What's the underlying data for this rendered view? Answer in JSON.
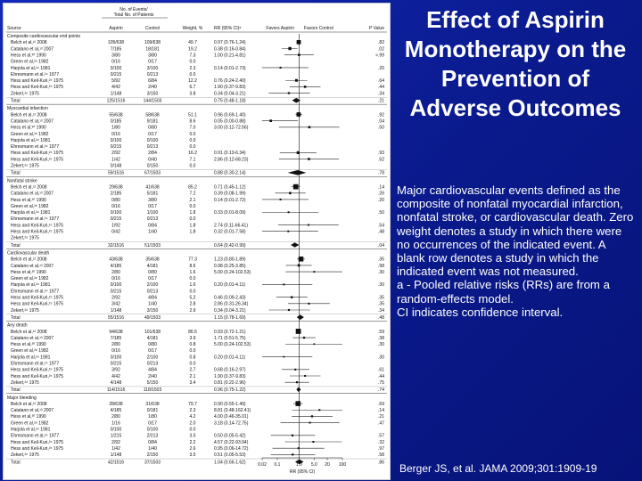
{
  "slide": {
    "title_lines": [
      "Effect of Aspirin",
      "Monotherapy on the",
      "Prevention of",
      "Adverse Outcomes"
    ],
    "notes": [
      "Major cardiovascular events defined as the composite of nonfatal myocardial infarction, nonfatal stroke, or cardiovascular death. Zero weight denotes a study in which there were no occurrences of the indicated event. A blank row denotes a study in which the indicated event was not measured.",
      "a - Pooled relative risks (RRs) are from a random-effects model.",
      "CI indicates confidence interval."
    ],
    "citation": "Berger JS, et al. JAMA 2009;301:1909-19"
  },
  "figure": {
    "header": {
      "events_line1": "No. of Events/",
      "events_line2": "Total No. of Patients",
      "source": "Source",
      "aspirin": "Aspirin",
      "control": "Control",
      "weight": "Weight, %",
      "rr": "RR (95% CI)ᵃ",
      "favors_aspirin": "Favors Aspirin",
      "favors_control": "Favors Control",
      "pvalue": "P Value"
    },
    "axis": {
      "label": "RR (95% CI)",
      "ticks": [
        "0.02",
        "0.1",
        "1.0",
        "5.0",
        "20",
        "100"
      ],
      "tick_values": [
        0.02,
        0.1,
        1,
        5,
        20,
        100
      ],
      "scale": "log"
    }
  },
  "chart_data": {
    "type": "forest",
    "x_scale": "log",
    "xlim": [
      0.02,
      100
    ],
    "reference_line": 1,
    "groups": [
      {
        "name": "Composite cardiovascular end points",
        "studies": [
          {
            "source": "Belch et al,¹² 2008",
            "aspirin": "105/638",
            "control": "109/638",
            "weight": "49.7",
            "rr_text": "0.97 (0.76-1.24)",
            "rr": 0.97,
            "lo": 0.76,
            "hi": 1.24,
            "p": ".82"
          },
          {
            "source": "Catalano et al,¹³ 2007",
            "aspirin": "7/185",
            "control": "18/181",
            "weight": "19.2",
            "rr_text": "0.38 (0.16-0.84)",
            "rr": 0.38,
            "lo": 0.16,
            "hi": 0.84,
            "p": ".02"
          },
          {
            "source": "Hess et al,³⁰ 1990",
            "aspirin": "3/80",
            "control": "3/80",
            "weight": "7.3",
            "rr_text": "1.00 (0.21-4.81)",
            "rr": 1.0,
            "lo": 0.21,
            "hi": 4.81,
            "p": ">.99"
          },
          {
            "source": "Green et al,²⁸ 1982",
            "aspirin": "0/16",
            "control": "0/17",
            "weight": "0.0",
            "rr_text": "",
            "rr": null,
            "lo": null,
            "hi": null,
            "p": ""
          },
          {
            "source": "Harjola et al,²⁹ 1981",
            "aspirin": "0/100",
            "control": "3/100",
            "weight": "2.3",
            "rr_text": "0.14 (0.01-2.73)",
            "rr": 0.14,
            "lo": 0.01,
            "hi": 2.73,
            "p": ".20"
          },
          {
            "source": "Ehresmann et al,²⁴ 1977",
            "aspirin": "0/215",
            "control": "0/213",
            "weight": "0.0",
            "rr_text": "",
            "rr": null,
            "lo": null,
            "hi": null,
            "p": ""
          },
          {
            "source": "Hess and Keil-Kuri,²⁵ 1975",
            "aspirin": "5/92",
            "control": "6/84",
            "weight": "12.2",
            "rr_text": "0.76 (0.24-2.40)",
            "rr": 0.76,
            "lo": 0.24,
            "hi": 2.4,
            "p": ".64"
          },
          {
            "source": "Hess and Keil-Kuri,²⁵ 1975",
            "aspirin": "4/42",
            "control": "2/40",
            "weight": "6.7",
            "rr_text": "1.90 (0.37-9.83)",
            "rr": 1.9,
            "lo": 0.37,
            "hi": 9.83,
            "p": ".44"
          },
          {
            "source": "Zekert,²⁶ 1975",
            "aspirin": "1/148",
            "control": "3/150",
            "weight": "3.8",
            "rr_text": "0.34 (0.04-3.21)",
            "rr": 0.34,
            "lo": 0.04,
            "hi": 3.21,
            "p": ".34"
          }
        ],
        "total": {
          "aspirin": "125/1516",
          "control": "144/1503",
          "rr_text": "0.75 (0.48-1.18)",
          "rr": 0.75,
          "lo": 0.48,
          "hi": 1.18,
          "p": ".21"
        }
      },
      {
        "name": "Myocardial infarction",
        "studies": [
          {
            "source": "Belch et al,¹² 2008",
            "aspirin": "55/638",
            "control": "58/638",
            "weight": "51.1",
            "rr_text": "0.96 (0.69-1.40)",
            "rr": 0.96,
            "lo": 0.69,
            "hi": 1.4,
            "p": ".92"
          },
          {
            "source": "Catalano et al,¹³ 2007",
            "aspirin": "0/185",
            "control": "9/181",
            "weight": "8.6",
            "rr_text": "0.05 (0.00-0.88)",
            "rr": 0.05,
            "lo": 0.0,
            "hi": 0.88,
            "p": ".04"
          },
          {
            "source": "Hess et al,³⁰ 1990",
            "aspirin": "1/80",
            "control": "0/80",
            "weight": "7.0",
            "rr_text": "3.00 (0.12-72.56)",
            "rr": 3.0,
            "lo": 0.12,
            "hi": 72.56,
            "p": ".50"
          },
          {
            "source": "Green et al,²⁸ 1982",
            "aspirin": "0/16",
            "control": "0/17",
            "weight": "0.0",
            "rr_text": "",
            "rr": null,
            "lo": null,
            "hi": null,
            "p": ""
          },
          {
            "source": "Harjola et al,²⁹ 1981",
            "aspirin": "0/100",
            "control": "0/100",
            "weight": "0.0",
            "rr_text": "",
            "rr": null,
            "lo": null,
            "hi": null,
            "p": ""
          },
          {
            "source": "Ehresmann et al,²⁴ 1977",
            "aspirin": "0/215",
            "control": "0/213",
            "weight": "0.0",
            "rr_text": "",
            "rr": null,
            "lo": null,
            "hi": null,
            "p": ""
          },
          {
            "source": "Hess and Keil-Kuri,²⁵ 1975",
            "aspirin": "2/92",
            "control": "2/84",
            "weight": "16.2",
            "rr_text": "0.91 (0.13-6.34)",
            "rr": 0.91,
            "lo": 0.13,
            "hi": 6.34,
            "p": ".93"
          },
          {
            "source": "Hess and Keil-Kuri,²⁵ 1975",
            "aspirin": "1/42",
            "control": "0/40",
            "weight": "7.1",
            "rr_text": "2.86 (0.12-68.23)",
            "rr": 2.86,
            "lo": 0.12,
            "hi": 68.23,
            "p": ".52"
          },
          {
            "source": "Zekert,²⁶ 1975",
            "aspirin": "0/148",
            "control": "0/150",
            "weight": "0.0",
            "rr_text": "",
            "rr": null,
            "lo": null,
            "hi": null,
            "p": ""
          }
        ],
        "total": {
          "aspirin": "59/1516",
          "control": "67/1503",
          "rr_text": "0.88 (0.30-2.14)",
          "rr": 0.88,
          "lo": 0.3,
          "hi": 2.14,
          "p": ".78"
        }
      },
      {
        "name": "Nonfatal stroke",
        "studies": [
          {
            "source": "Belch et al,¹² 2008",
            "aspirin": "29/638",
            "control": "41/638",
            "weight": "85.2",
            "rr_text": "0.71 (0.45-1.12)",
            "rr": 0.71,
            "lo": 0.45,
            "hi": 1.12,
            "p": ".14"
          },
          {
            "source": "Catalano et al,¹³ 2007",
            "aspirin": "2/185",
            "control": "5/181",
            "weight": "7.2",
            "rr_text": "0.39 (0.08-1.99)",
            "rr": 0.39,
            "lo": 0.08,
            "hi": 1.99,
            "p": ".26"
          },
          {
            "source": "Hess et al,³⁰ 1990",
            "aspirin": "0/80",
            "control": "3/80",
            "weight": "2.1",
            "rr_text": "0.14 (0.01-2.72)",
            "rr": 0.14,
            "lo": 0.01,
            "hi": 2.72,
            "p": ".20"
          },
          {
            "source": "Green et al,²⁸ 1982",
            "aspirin": "0/16",
            "control": "0/17",
            "weight": "0.0",
            "rr_text": "",
            "rr": null,
            "lo": null,
            "hi": null,
            "p": ""
          },
          {
            "source": "Harjola et al,²⁹ 1981",
            "aspirin": "0/100",
            "control": "1/100",
            "weight": "1.8",
            "rr_text": "0.33 (0.01-8.09)",
            "rr": 0.33,
            "lo": 0.01,
            "hi": 8.09,
            "p": ".50"
          },
          {
            "source": "Ehresmann et al,²⁴ 1977",
            "aspirin": "0/215",
            "control": "0/213",
            "weight": "0.0",
            "rr_text": "",
            "rr": null,
            "lo": null,
            "hi": null,
            "p": ""
          },
          {
            "source": "Hess and Keil-Kuri,²⁵ 1975",
            "aspirin": "1/92",
            "control": "0/84",
            "weight": "1.8",
            "rr_text": "2.74 (0.11-66.41)",
            "rr": 2.74,
            "lo": 0.11,
            "hi": 66.41,
            "p": ".54"
          },
          {
            "source": "Hess and Keil-Kuri,²⁵ 1975",
            "aspirin": "0/42",
            "control": "1/40",
            "weight": "1.8",
            "rr_text": "0.32 (0.01-7.58)",
            "rr": 0.32,
            "lo": 0.01,
            "hi": 7.58,
            "p": ".48"
          },
          {
            "source": "Zekert,²⁶ 1975",
            "aspirin": "",
            "control": "",
            "weight": "",
            "rr_text": "",
            "rr": null,
            "lo": null,
            "hi": null,
            "p": ""
          }
        ],
        "total": {
          "aspirin": "32/1516",
          "control": "51/1503",
          "rr_text": "0.64 (0.42-0.99)",
          "rr": 0.64,
          "lo": 0.42,
          "hi": 0.99,
          "p": ".04"
        }
      },
      {
        "name": "Cardiovascular death",
        "studies": [
          {
            "source": "Belch et al,¹² 2008",
            "aspirin": "43/638",
            "control": "35/638",
            "weight": "77.3",
            "rr_text": "1.23 (0.80-1.89)",
            "rr": 1.23,
            "lo": 0.8,
            "hi": 1.89,
            "p": ".35"
          },
          {
            "source": "Catalano et al,¹³ 2007",
            "aspirin": "4/185",
            "control": "4/181",
            "weight": "8.6",
            "rr_text": "0.98 (0.25-3.85)",
            "rr": 0.98,
            "lo": 0.25,
            "hi": 3.85,
            "p": ".98"
          },
          {
            "source": "Hess et al,³⁰ 1990",
            "aspirin": "2/80",
            "control": "0/80",
            "weight": "1.6",
            "rr_text": "5.00 (0.24-102.53)",
            "rr": 5.0,
            "lo": 0.24,
            "hi": 102.53,
            "p": ".30"
          },
          {
            "source": "Green et al,²⁸ 1982",
            "aspirin": "0/16",
            "control": "0/17",
            "weight": "0.0",
            "rr_text": "",
            "rr": null,
            "lo": null,
            "hi": null,
            "p": ""
          },
          {
            "source": "Harjola et al,²⁹ 1981",
            "aspirin": "0/100",
            "control": "2/100",
            "weight": "1.6",
            "rr_text": "0.20 (0.01-4.11)",
            "rr": 0.2,
            "lo": 0.01,
            "hi": 4.11,
            "p": ".30"
          },
          {
            "source": "Ehresmann et al,²⁴ 1977",
            "aspirin": "0/215",
            "control": "0/213",
            "weight": "0.0",
            "rr_text": "",
            "rr": null,
            "lo": null,
            "hi": null,
            "p": ""
          },
          {
            "source": "Hess and Keil-Kuri,²⁵ 1975",
            "aspirin": "2/92",
            "control": "4/84",
            "weight": "5.2",
            "rr_text": "0.46 (0.09-2.43)",
            "rr": 0.46,
            "lo": 0.09,
            "hi": 2.43,
            "p": ".35"
          },
          {
            "source": "Hess and Keil-Kuri,²⁵ 1975",
            "aspirin": "3/42",
            "control": "1/40",
            "weight": "2.8",
            "rr_text": "2.86 (0.31-26.34)",
            "rr": 2.86,
            "lo": 0.31,
            "hi": 26.34,
            "p": ".35"
          },
          {
            "source": "Zekert,²⁶ 1975",
            "aspirin": "1/148",
            "control": "3/150",
            "weight": "2.9",
            "rr_text": "0.34 (0.04-3.21)",
            "rr": 0.34,
            "lo": 0.04,
            "hi": 3.21,
            "p": ".34"
          }
        ],
        "total": {
          "aspirin": "55/1516",
          "control": "49/1503",
          "rr_text": "1.15 (0.78-1.69)",
          "rr": 1.15,
          "lo": 0.78,
          "hi": 1.69,
          "p": ".48"
        }
      },
      {
        "name": "Any death",
        "studies": [
          {
            "source": "Belch et al,¹² 2008",
            "aspirin": "94/638",
            "control": "101/638",
            "weight": "86.5",
            "rr_text": "0.93 (0.72-1.21)",
            "rr": 0.93,
            "lo": 0.72,
            "hi": 1.21,
            "p": ".59"
          },
          {
            "source": "Catalano et al,¹³ 2007",
            "aspirin": "7/185",
            "control": "4/181",
            "weight": "3.9",
            "rr_text": "1.71 (0.51-5.75)",
            "rr": 1.71,
            "lo": 0.51,
            "hi": 5.75,
            "p": ".38"
          },
          {
            "source": "Hess et al,³⁰ 1990",
            "aspirin": "2/80",
            "control": "0/80",
            "weight": "0.8",
            "rr_text": "5.00 (0.24-102.53)",
            "rr": 5.0,
            "lo": 0.24,
            "hi": 102.53,
            "p": ".30"
          },
          {
            "source": "Green et al,²⁸ 1982",
            "aspirin": "0/16",
            "control": "0/17",
            "weight": "0.0",
            "rr_text": "",
            "rr": null,
            "lo": null,
            "hi": null,
            "p": ""
          },
          {
            "source": "Harjola et al,²⁹ 1981",
            "aspirin": "0/100",
            "control": "2/100",
            "weight": "0.8",
            "rr_text": "0.20 (0.01-4.11)",
            "rr": 0.2,
            "lo": 0.01,
            "hi": 4.11,
            "p": ".30"
          },
          {
            "source": "Ehresmann et al,²⁴ 1977",
            "aspirin": "0/215",
            "control": "0/213",
            "weight": "0.0",
            "rr_text": "",
            "rr": null,
            "lo": null,
            "hi": null,
            "p": ""
          },
          {
            "source": "Hess and Keil-Kuri,²⁵ 1975",
            "aspirin": "3/92",
            "control": "4/84",
            "weight": "2.7",
            "rr_text": "0.68 (0.16-2.97)",
            "rr": 0.68,
            "lo": 0.16,
            "hi": 2.97,
            "p": ".61"
          },
          {
            "source": "Hess and Keil-Kuri,²⁵ 1975",
            "aspirin": "4/42",
            "control": "2/40",
            "weight": "2.1",
            "rr_text": "1.90 (0.37-9.83)",
            "rr": 1.9,
            "lo": 0.37,
            "hi": 9.83,
            "p": ".44"
          },
          {
            "source": "Zekert,²⁶ 1975",
            "aspirin": "4/148",
            "control": "5/150",
            "weight": "3.4",
            "rr_text": "0.81 (0.22-2.96)",
            "rr": 0.81,
            "lo": 0.22,
            "hi": 2.96,
            "p": ".75"
          }
        ],
        "total": {
          "aspirin": "114/1516",
          "control": "118/1503",
          "rr_text": "0.96 (0.75-1.22)",
          "rr": 0.96,
          "lo": 0.75,
          "hi": 1.22,
          "p": ".74"
        }
      },
      {
        "name": "Major bleeding",
        "studies": [
          {
            "source": "Belch et al,¹² 2008",
            "aspirin": "28/638",
            "control": "31/638",
            "weight": "79.7",
            "rr_text": "0.90 (0.55-1.49)",
            "rr": 0.9,
            "lo": 0.55,
            "hi": 1.49,
            "p": ".69"
          },
          {
            "source": "Catalano et al,¹³ 2007",
            "aspirin": "4/185",
            "control": "0/181",
            "weight": "2.3",
            "rr_text": "8.81 (0.48-162.41)",
            "rr": 8.81,
            "lo": 0.48,
            "hi": 162.41,
            "p": ".14"
          },
          {
            "source": "Hess et al,³⁰ 1990",
            "aspirin": "2/80",
            "control": "1/80",
            "weight": "4.2",
            "rr_text": "4.00 (0.46-35.01)",
            "rr": 4.0,
            "lo": 0.46,
            "hi": 35.01,
            "p": ".21"
          },
          {
            "source": "Green et al,²⁸ 1982",
            "aspirin": "1/16",
            "control": "0/17",
            "weight": "2.0",
            "rr_text": "3.18 (0.14-72.75)",
            "rr": 3.18,
            "lo": 0.14,
            "hi": 72.75,
            "p": ".47"
          },
          {
            "source": "Harjola et al,²⁹ 1981",
            "aspirin": "0/100",
            "control": "0/100",
            "weight": "0.0",
            "rr_text": "",
            "rr": null,
            "lo": null,
            "hi": null,
            "p": ""
          },
          {
            "source": "Ehresmann et al,²⁴ 1977",
            "aspirin": "1/215",
            "control": "2/213",
            "weight": "3.5",
            "rr_text": "0.50 (0.05-5.42)",
            "rr": 0.5,
            "lo": 0.05,
            "hi": 5.42,
            "p": ".57"
          },
          {
            "source": "Hess and Keil-Kuri,²⁵ 1975",
            "aspirin": "2/92",
            "control": "0/84",
            "weight": "2.2",
            "rr_text": "4.57 (0.22-93.94)",
            "rr": 4.57,
            "lo": 0.22,
            "hi": 93.94,
            "p": ".32"
          },
          {
            "source": "Hess and Keil-Kuri,²⁵ 1975",
            "aspirin": "1/42",
            "control": "1/40",
            "weight": "2.6",
            "rr_text": "0.95 (0.06-14.72)",
            "rr": 0.95,
            "lo": 0.06,
            "hi": 14.72,
            "p": ".97"
          },
          {
            "source": "Zekert,²⁶ 1975",
            "aspirin": "1/148",
            "control": "2/150",
            "weight": "3.5",
            "rr_text": "0.51 (0.05-5.53)",
            "rr": 0.51,
            "lo": 0.05,
            "hi": 5.53,
            "p": ".58"
          }
        ],
        "total": {
          "aspirin": "42/1516",
          "control": "37/1503",
          "rr_text": "1.04 (0.66-1.62)",
          "rr": 1.04,
          "lo": 0.66,
          "hi": 1.62,
          "p": ".86"
        }
      }
    ]
  }
}
